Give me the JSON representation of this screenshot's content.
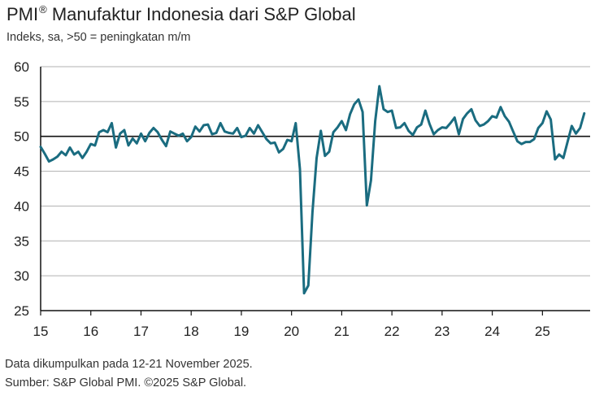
{
  "chart_data": {
    "type": "line",
    "title": "PMI",
    "title_mark": "®",
    "title_rest": "Manufaktur Indonesia dari S&P Global",
    "subtitle": "Indeks, sa, >50 = peningkatan m/m",
    "ylim": [
      25,
      60
    ],
    "yticks": [
      25,
      30,
      35,
      40,
      45,
      50,
      55,
      60
    ],
    "reference_line": 50,
    "xlim": [
      2015.0,
      2025.95
    ],
    "xticks": [
      {
        "label": "15",
        "x": 2015
      },
      {
        "label": "16",
        "x": 2016
      },
      {
        "label": "17",
        "x": 2017
      },
      {
        "label": "18",
        "x": 2018
      },
      {
        "label": "19",
        "x": 2019
      },
      {
        "label": "20",
        "x": 2020
      },
      {
        "label": "21",
        "x": 2021
      },
      {
        "label": "22",
        "x": 2022
      },
      {
        "label": "23",
        "x": 2023
      },
      {
        "label": "24",
        "x": 2024
      },
      {
        "label": "25",
        "x": 2025
      }
    ],
    "series": [
      {
        "name": "PMI Manufaktur Indonesia",
        "color": "#1a6c80",
        "start": 2015.0,
        "step": 0.0833333,
        "values": [
          48.5,
          47.5,
          46.4,
          46.7,
          47.1,
          47.8,
          47.3,
          48.4,
          47.4,
          47.8,
          46.9,
          47.8,
          48.9,
          48.7,
          50.6,
          50.9,
          50.6,
          51.9,
          48.4,
          50.4,
          50.9,
          48.7,
          49.7,
          49.0,
          50.4,
          49.3,
          50.5,
          51.2,
          50.6,
          49.5,
          48.6,
          50.7,
          50.4,
          50.1,
          50.4,
          49.3,
          49.9,
          51.4,
          50.7,
          51.6,
          51.7,
          50.3,
          50.5,
          51.9,
          50.7,
          50.5,
          50.4,
          51.2,
          49.9,
          50.1,
          51.2,
          50.4,
          51.6,
          50.6,
          49.6,
          49.0,
          49.1,
          47.7,
          48.2,
          49.5,
          49.3,
          51.9,
          45.3,
          27.5,
          28.6,
          39.1,
          46.9,
          50.8,
          47.2,
          47.8,
          50.6,
          51.3,
          52.2,
          50.9,
          53.2,
          54.6,
          55.3,
          53.5,
          40.1,
          43.7,
          52.2,
          57.2,
          53.9,
          53.5,
          53.7,
          51.2,
          51.3,
          51.9,
          50.8,
          50.2,
          51.3,
          51.7,
          53.7,
          51.8,
          50.3,
          50.9,
          51.3,
          51.2,
          51.9,
          52.7,
          50.3,
          52.5,
          53.3,
          53.9,
          52.3,
          51.5,
          51.7,
          52.2,
          52.9,
          52.7,
          54.2,
          52.9,
          52.1,
          50.7,
          49.3,
          48.9,
          49.2,
          49.2,
          49.6,
          51.2,
          51.9,
          53.6,
          52.4,
          46.7,
          47.4,
          46.9,
          49.2,
          51.5,
          50.4,
          51.2,
          53.3
        ]
      }
    ]
  },
  "footer": {
    "note": "Data dikumpulkan pada 12-21 November 2025.",
    "source": "Sumber: S&P Global PMI. ©2025 S&P Global."
  }
}
